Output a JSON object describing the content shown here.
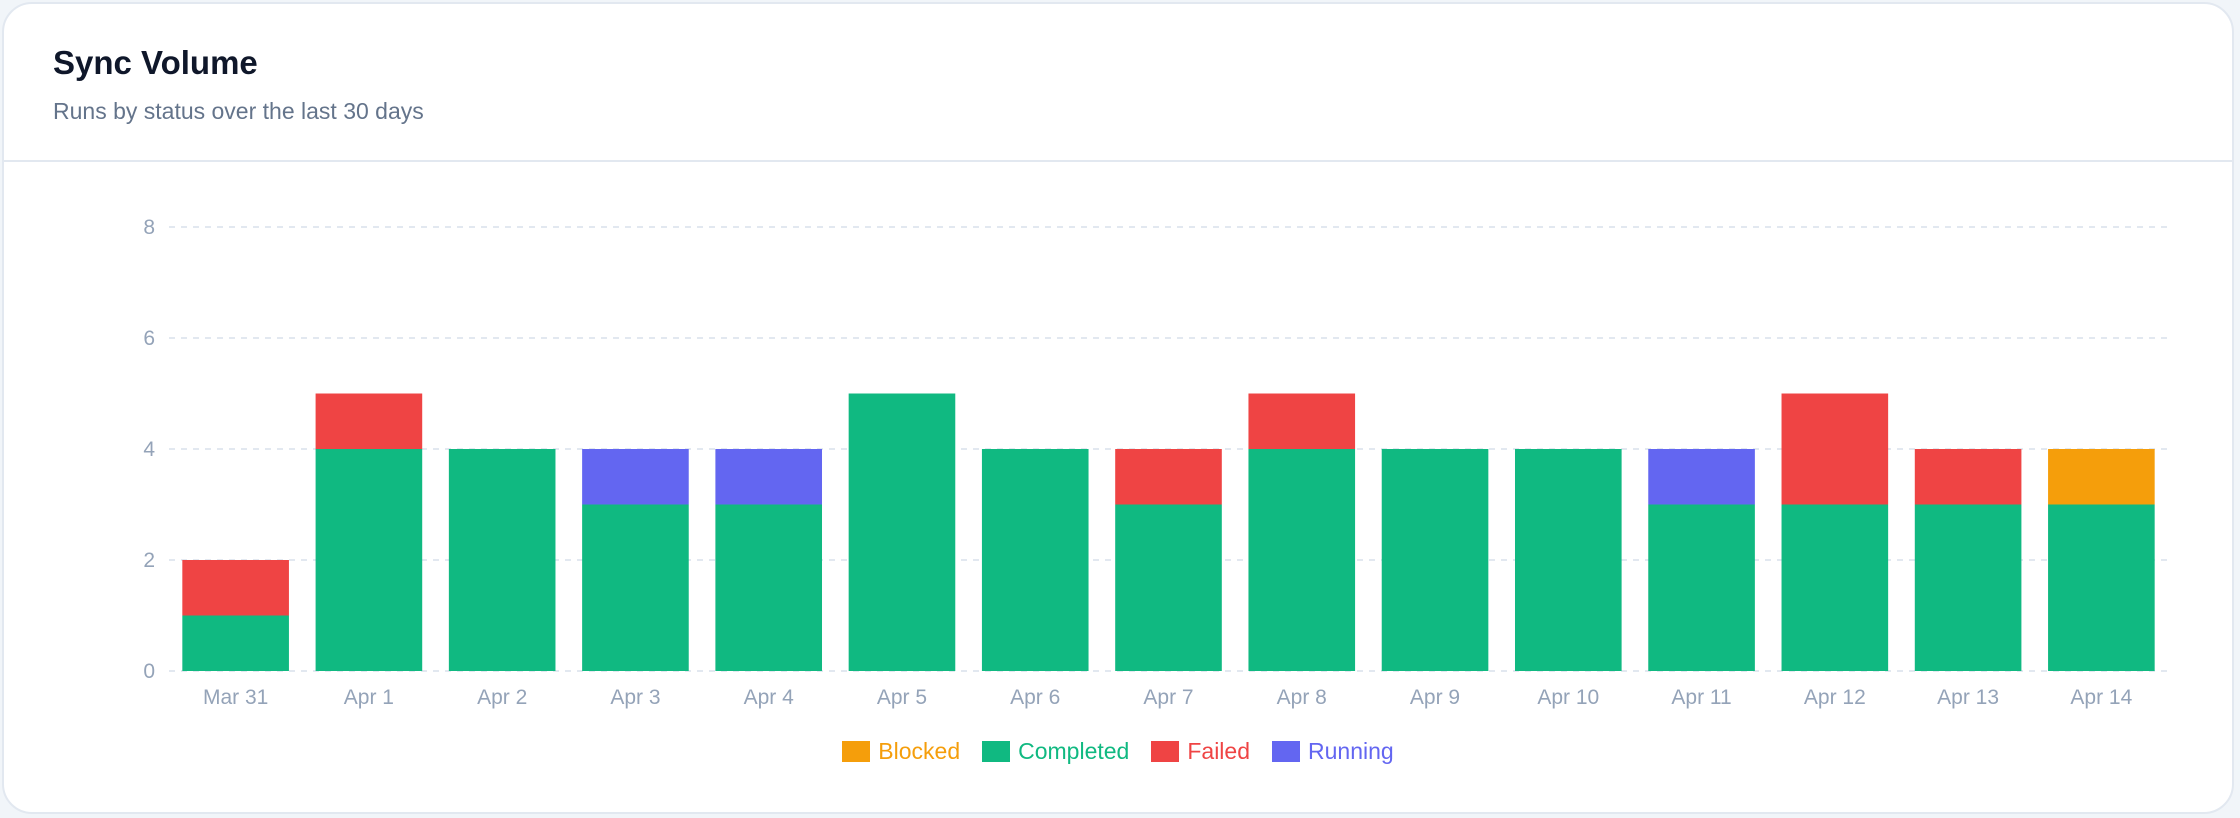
{
  "header": {
    "title": "Sync Volume",
    "subtitle": "Runs by status over the last 30 days"
  },
  "chart_data": {
    "type": "bar",
    "stacked": true,
    "categories": [
      "Mar 31",
      "Apr 1",
      "Apr 2",
      "Apr 3",
      "Apr 4",
      "Apr 5",
      "Apr 6",
      "Apr 7",
      "Apr 8",
      "Apr 9",
      "Apr 10",
      "Apr 11",
      "Apr 12",
      "Apr 13",
      "Apr 14"
    ],
    "series": [
      {
        "name": "Completed",
        "color": "#10b981",
        "values": [
          1,
          4,
          4,
          3,
          3,
          5,
          4,
          3,
          4,
          4,
          4,
          3,
          3,
          3,
          3
        ]
      },
      {
        "name": "Failed",
        "color": "#ef4444",
        "values": [
          1,
          1,
          0,
          0,
          0,
          0,
          0,
          1,
          1,
          0,
          0,
          0,
          2,
          1,
          0
        ]
      },
      {
        "name": "Running",
        "color": "#6366f1",
        "values": [
          0,
          0,
          0,
          1,
          1,
          0,
          0,
          0,
          0,
          0,
          0,
          1,
          0,
          0,
          0
        ]
      },
      {
        "name": "Blocked",
        "color": "#f59e0b",
        "values": [
          0,
          0,
          0,
          0,
          0,
          0,
          0,
          0,
          0,
          0,
          0,
          0,
          0,
          0,
          1
        ]
      }
    ],
    "ylim": [
      0,
      8
    ],
    "yticks": [
      0,
      2,
      4,
      6,
      8
    ],
    "grid": true,
    "legend_position": "bottom",
    "legend": [
      {
        "name": "Blocked",
        "color": "#f59e0b"
      },
      {
        "name": "Completed",
        "color": "#10b981"
      },
      {
        "name": "Failed",
        "color": "#ef4444"
      },
      {
        "name": "Running",
        "color": "#6366f1"
      }
    ]
  }
}
